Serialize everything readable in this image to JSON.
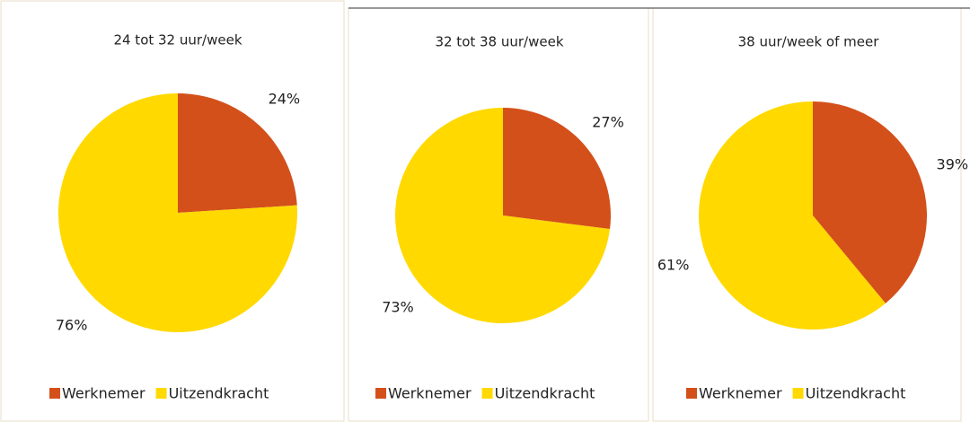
{
  "chart_data": [
    {
      "type": "pie",
      "title": "24 tot 32 uur/week",
      "categories": [
        "Werknemer",
        "Uitzendkracht"
      ],
      "values": [
        24,
        76
      ],
      "value_labels": [
        "24%",
        "76%"
      ],
      "colors": [
        "#d4501a",
        "#ffd900"
      ]
    },
    {
      "type": "pie",
      "title": "32 tot 38 uur/week",
      "categories": [
        "Werknemer",
        "Uitzendkracht"
      ],
      "values": [
        27,
        73
      ],
      "value_labels": [
        "27%",
        "73%"
      ],
      "colors": [
        "#d4501a",
        "#ffd900"
      ]
    },
    {
      "type": "pie",
      "title": "38 uur/week of meer",
      "categories": [
        "Werknemer",
        "Uitzendkracht"
      ],
      "values": [
        39,
        61
      ],
      "value_labels": [
        "39%",
        "61%"
      ],
      "colors": [
        "#d4501a",
        "#ffd900"
      ]
    }
  ]
}
